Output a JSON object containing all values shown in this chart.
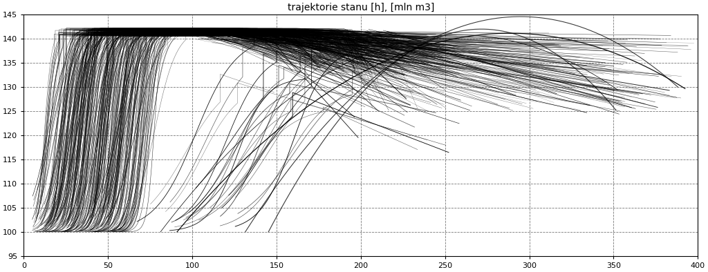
{
  "title": "trajektorie stanu [h], [mln m3]",
  "xlim": [
    0,
    400
  ],
  "ylim": [
    95,
    145
  ],
  "xticks": [
    0,
    50,
    100,
    150,
    200,
    250,
    300,
    350,
    400
  ],
  "yticks": [
    95,
    100,
    105,
    110,
    115,
    120,
    125,
    130,
    135,
    140,
    145
  ],
  "bg_color": "#ffffff",
  "y_start": 100.0,
  "y_plateau": 141.5
}
